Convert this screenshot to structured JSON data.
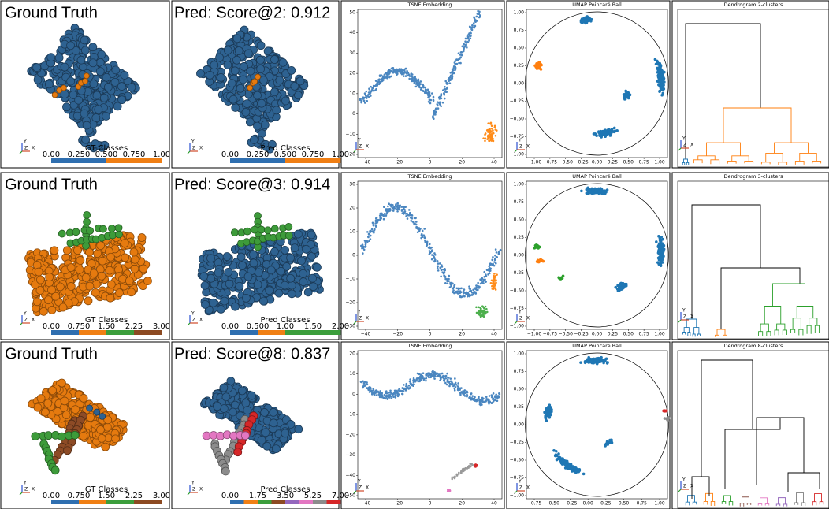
{
  "axis_letters": [
    "Y",
    "Z",
    "X"
  ],
  "rows": [
    {
      "gt_title": "Ground Truth",
      "pred_title": "Pred: Score@2: 0.912",
      "gt_colorbar": {
        "label": "GT Classes",
        "ticks": [
          "0.00",
          "0.250",
          "0.500",
          "0.750",
          "1.00"
        ],
        "colors": [
          "#2f6fb0",
          "#f07f14"
        ]
      },
      "pred_colorbar": {
        "label": "Pred Classes",
        "ticks": [
          "0.00",
          "0.250",
          "0.500",
          "0.750",
          "1.00"
        ],
        "colors": [
          "#2f6fb0",
          "#f07f14"
        ]
      },
      "tsne": {
        "title": "TSNE Embedding",
        "xticks": [
          "−40",
          "−20",
          "0",
          "20",
          "40"
        ],
        "yticks": [
          "50",
          "40",
          "30",
          "20",
          "10",
          "0",
          "−10",
          "−20"
        ]
      },
      "umap": {
        "title": "UMAP Poincaré Ball",
        "xticks": [
          "−1.00",
          "−0.75",
          "−0.50",
          "−0.25",
          "0.00",
          "0.25",
          "0.50",
          "0.75",
          "1.00"
        ],
        "yticks": [
          "1.00",
          "0.75",
          "0.50",
          "0.25",
          "0.00",
          "−0.25",
          "−0.50",
          "−0.75",
          "−1.00"
        ]
      },
      "dendrogram": {
        "title": "Dendrogram 2-clusters"
      }
    },
    {
      "gt_title": "Ground Truth",
      "pred_title": "Pred: Score@3: 0.914",
      "gt_colorbar": {
        "label": "GT Classes",
        "ticks": [
          "0.00",
          "0.750",
          "1.50",
          "2.25",
          "3.00"
        ],
        "colors": [
          "#2f6fb0",
          "#f07f14",
          "#3c9e3c",
          "#8c4a22"
        ]
      },
      "pred_colorbar": {
        "label": "Pred Classes",
        "ticks": [
          "0.00",
          "0.500",
          "1.00",
          "1.50",
          "2.00"
        ],
        "colors": [
          "#2f6fb0",
          "#f07f14",
          "#3c9e3c",
          "#3c9e3c"
        ]
      },
      "tsne": {
        "title": "TSNE Embedding",
        "xticks": [
          "−40",
          "−20",
          "0",
          "20",
          "40"
        ],
        "yticks": [
          "30",
          "20",
          "10",
          "0",
          "−10",
          "−20",
          "−30"
        ]
      },
      "umap": {
        "title": "UMAP Poincaré Ball",
        "xticks": [
          "−1.00",
          "−0.75",
          "−0.50",
          "−0.25",
          "0.00",
          "0.25",
          "0.50",
          "0.75",
          "1.00"
        ],
        "yticks": [
          "1.00",
          "0.75",
          "0.50",
          "0.25",
          "0.00",
          "−0.25",
          "−0.50",
          "−0.75",
          "−1.00"
        ]
      },
      "dendrogram": {
        "title": "Dendrogram 3-clusters"
      }
    },
    {
      "gt_title": "Ground Truth",
      "pred_title": "Pred: Score@8: 0.837",
      "gt_colorbar": {
        "label": "GT Classes",
        "ticks": [
          "0.00",
          "0.750",
          "1.50",
          "2.25",
          "3.00"
        ],
        "colors": [
          "#2f6fb0",
          "#f07f14",
          "#3c9e3c",
          "#8c4a22"
        ]
      },
      "pred_colorbar": {
        "label": "Pred Classes",
        "ticks": [
          "0.00",
          "1.75",
          "3.50",
          "5.25",
          "7.00"
        ],
        "colors": [
          "#2f6fb0",
          "#f07f14",
          "#3c9e3c",
          "#8c4a22",
          "#9467bd",
          "#e377c2",
          "#8c8c8c",
          "#d62728"
        ]
      },
      "tsne": {
        "title": "TSNE Embedding",
        "xticks": [
          "−40",
          "−20",
          "0",
          "20",
          "40"
        ],
        "yticks": [
          "20",
          "10",
          "0",
          "−10",
          "−20",
          "−30",
          "−40",
          "−50"
        ]
      },
      "umap": {
        "title": "UMAP Poincaré Ball",
        "xticks": [
          "−0.75",
          "−0.50",
          "−0.25",
          "0.00",
          "0.25",
          "0.50",
          "0.75",
          "1.00"
        ],
        "yticks": [
          "1.00",
          "0.75",
          "0.50",
          "0.25",
          "0.00",
          "−0.25",
          "−0.50",
          "−0.75",
          "−1.00"
        ]
      },
      "dendrogram": {
        "title": "Dendrogram 8-clusters"
      }
    }
  ]
}
